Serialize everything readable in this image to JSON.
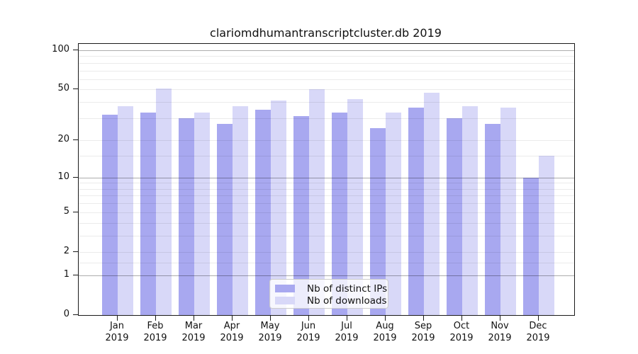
{
  "title": "clariomdhumantranscriptcluster.db 2019",
  "chart_data": {
    "type": "bar",
    "categories": [
      "Jan 2019",
      "Feb 2019",
      "Mar 2019",
      "Apr 2019",
      "May 2019",
      "Jun 2019",
      "Jul 2019",
      "Aug 2019",
      "Sep 2019",
      "Oct 2019",
      "Nov 2019",
      "Dec 2019"
    ],
    "series": [
      {
        "name": "Nb of distinct IPs",
        "color": "#a8a8f0",
        "values": [
          32,
          33,
          30,
          27,
          35,
          31,
          33,
          25,
          36,
          30,
          27,
          10
        ]
      },
      {
        "name": "Nb of downloads",
        "color": "#d8d8f8",
        "values": [
          37,
          51,
          33,
          37,
          41,
          50,
          42,
          33,
          47,
          37,
          36,
          15
        ]
      }
    ],
    "xlabel": "",
    "ylabel": "",
    "ylim": [
      0,
      100
    ],
    "yticks": [
      0,
      1,
      2,
      5,
      10,
      20,
      50,
      100
    ],
    "major_gridlines": [
      1,
      10,
      100
    ],
    "minor_gridlines": [
      1.5,
      2,
      3,
      4,
      5,
      6,
      7,
      8,
      9,
      15,
      20,
      30,
      40,
      50,
      60,
      70,
      80,
      90
    ],
    "scale": "log1p",
    "grid": true,
    "legend_position": "inside-lower-center"
  },
  "colors": {
    "background": "#ffffff",
    "frame": "#1a1a1a",
    "minor_grid": "#ebebeb",
    "major_grid": "#a6a6a6",
    "text": "#111111",
    "legend_border": "#cccccc"
  }
}
